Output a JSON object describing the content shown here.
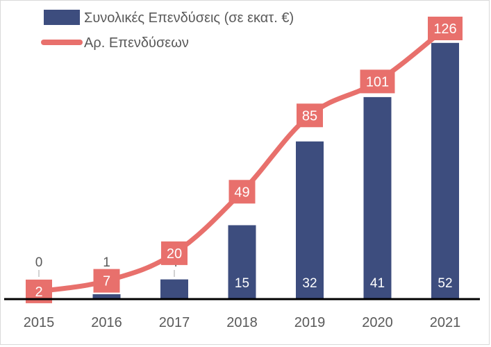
{
  "chart_data": {
    "type": "bar+line",
    "categories": [
      "2015",
      "2016",
      "2017",
      "2018",
      "2019",
      "2020",
      "2021"
    ],
    "series": [
      {
        "name": "Συνολικές Επενδύσεις (σε εκατ. €)",
        "type": "bar",
        "values": [
          0,
          1,
          4,
          15,
          32,
          41,
          52
        ],
        "color": "#3d4d7e"
      },
      {
        "name": "Αρ. Επενδύσεων",
        "type": "line",
        "values": [
          2,
          7,
          20,
          49,
          85,
          101,
          126
        ],
        "color": "#e8706c"
      }
    ],
    "legend_position": "top-left",
    "grid": false
  }
}
